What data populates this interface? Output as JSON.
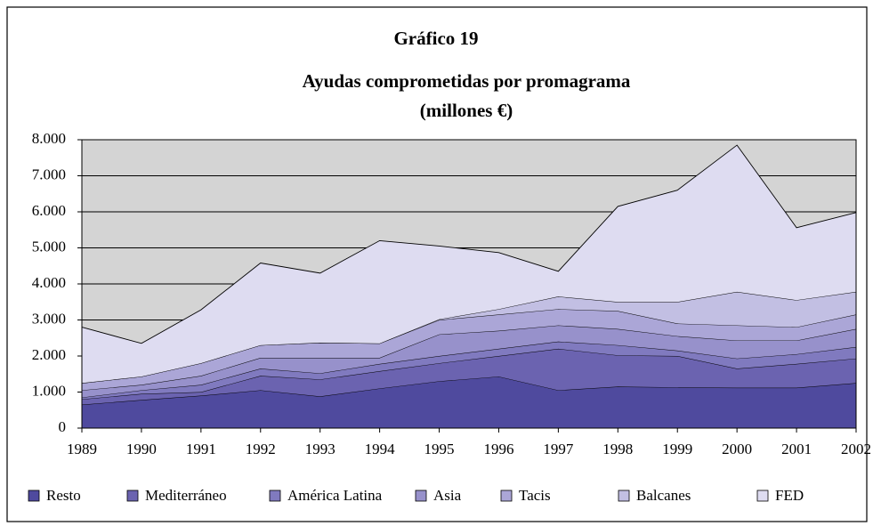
{
  "chart_data": {
    "type": "stacked_area",
    "title": "Gráfico 19",
    "subtitle": [
      "Ayudas comprometidas por promagrama",
      "(millones €)"
    ],
    "categories": [
      "1989",
      "1990",
      "1991",
      "1992",
      "1993",
      "1994",
      "1995",
      "1996",
      "1997",
      "1998",
      "1999",
      "2000",
      "2001",
      "2002"
    ],
    "series": [
      {
        "name": "Resto",
        "color": "#4f4a9e",
        "values": [
          650,
          780,
          900,
          1050,
          880,
          1100,
          1300,
          1430,
          1050,
          1150,
          1130,
          1120,
          1120,
          1250
        ]
      },
      {
        "name": "Mediterráneo",
        "color": "#6b63b0",
        "values": [
          150,
          170,
          100,
          400,
          470,
          480,
          500,
          570,
          1150,
          870,
          870,
          530,
          660,
          680
        ]
      },
      {
        "name": "América Latina",
        "color": "#807abf",
        "values": [
          50,
          100,
          200,
          200,
          170,
          200,
          200,
          200,
          200,
          280,
          150,
          280,
          270,
          320
        ]
      },
      {
        "name": "Asia",
        "color": "#9791cb",
        "values": [
          200,
          150,
          250,
          300,
          430,
          170,
          600,
          500,
          450,
          450,
          400,
          500,
          380,
          500
        ]
      },
      {
        "name": "Tacis",
        "color": "#aba6d7",
        "values": [
          200,
          230,
          350,
          350,
          420,
          400,
          400,
          450,
          450,
          500,
          350,
          420,
          370,
          400
        ]
      },
      {
        "name": "Balcanes",
        "color": "#c2bfe3",
        "values": [
          0,
          0,
          0,
          0,
          0,
          0,
          20,
          150,
          350,
          250,
          600,
          930,
          750,
          630
        ]
      },
      {
        "name": "FED",
        "color": "#dedcf1",
        "values": [
          1550,
          920,
          1480,
          2280,
          1930,
          2850,
          2030,
          1570,
          700,
          2650,
          3100,
          4070,
          2010,
          2200
        ]
      }
    ],
    "ylim": [
      0,
      8000
    ],
    "yticks": [
      0,
      {
        "value": 1000,
        "label": "1.000"
      },
      {
        "value": 2000,
        "label": "2.000"
      },
      {
        "value": 3000,
        "label": "3.000"
      },
      {
        "value": 4000,
        "label": "4.000"
      },
      {
        "value": 5000,
        "label": "5.000"
      },
      {
        "value": 6000,
        "label": "6.000"
      },
      {
        "value": 7000,
        "label": "7.000"
      },
      {
        "value": 8000,
        "label": "8.000"
      }
    ],
    "grid": true,
    "plot_background": "#d4d4d4",
    "legend": "bottom"
  }
}
